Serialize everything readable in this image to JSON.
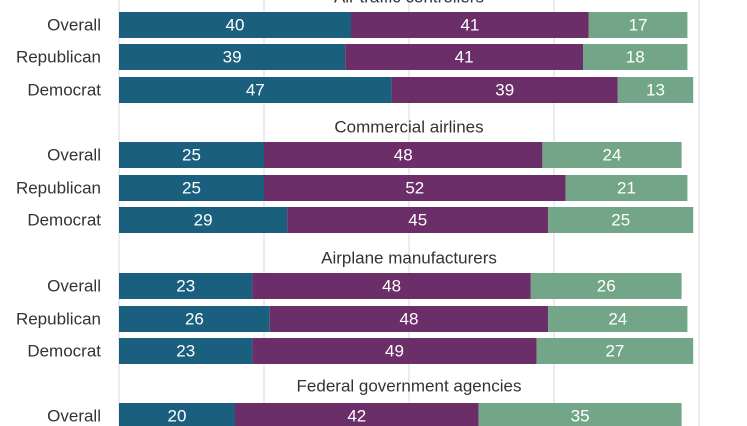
{
  "chart_data": {
    "type": "bar",
    "orientation": "horizontal",
    "stacked": true,
    "xlim": [
      0,
      100
    ],
    "grid": true,
    "legend": "none",
    "colors": [
      "#1a607e",
      "#6b2e68",
      "#73a688"
    ],
    "groups": [
      {
        "title": "Air traffic controllers",
        "rows": [
          {
            "label": "Overall",
            "values": [
              40,
              41,
              17
            ]
          },
          {
            "label": "Republican",
            "values": [
              39,
              41,
              18
            ]
          },
          {
            "label": "Democrat",
            "values": [
              47,
              39,
              13
            ]
          }
        ]
      },
      {
        "title": "Commercial airlines",
        "rows": [
          {
            "label": "Overall",
            "values": [
              25,
              48,
              24
            ]
          },
          {
            "label": "Republican",
            "values": [
              25,
              52,
              21
            ]
          },
          {
            "label": "Democrat",
            "values": [
              29,
              45,
              25
            ]
          }
        ]
      },
      {
        "title": "Airplane manufacturers",
        "rows": [
          {
            "label": "Overall",
            "values": [
              23,
              48,
              26
            ]
          },
          {
            "label": "Republican",
            "values": [
              26,
              48,
              24
            ]
          },
          {
            "label": "Democrat",
            "values": [
              23,
              49,
              27
            ]
          }
        ]
      },
      {
        "title": "Federal government agencies",
        "rows": [
          {
            "label": "Overall",
            "values": [
              20,
              42,
              35
            ]
          }
        ]
      }
    ]
  }
}
